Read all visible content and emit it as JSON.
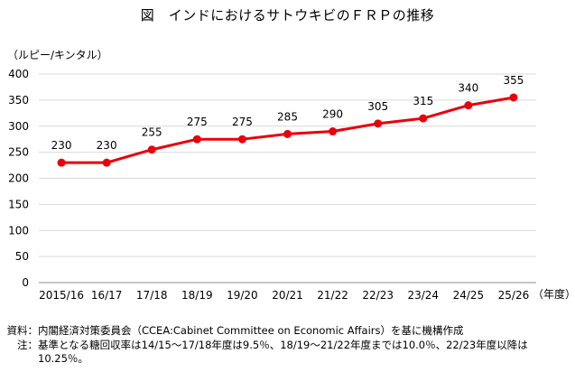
{
  "title": "図　インドにおけるサトウキビのＦＲＰの推移",
  "notes": {
    "source_label": "資料：",
    "source_text": "内閣経済対策委員会（CCEA:Cabinet Committee on Economic Affairs）を基に機構作成",
    "note_label": "注：",
    "note_text": "基準となる糖回収率は14/15～17/18年度は9.5％、18/19～21/22年度までは10.0％、22/23年度以降は10.25％。"
  },
  "chart_data": {
    "type": "line",
    "title": "図　インドにおけるサトウキビのＦＲＰの推移",
    "ylabel": "（ルピー/キンタル）",
    "xlabel": "（年度）",
    "categories": [
      "2015/16",
      "16/17",
      "17/18",
      "18/19",
      "19/20",
      "20/21",
      "21/22",
      "22/23",
      "23/24",
      "24/25",
      "25/26"
    ],
    "series": [
      {
        "values": [
          230,
          230,
          255,
          275,
          275,
          285,
          290,
          305,
          315,
          340,
          355
        ]
      }
    ],
    "ylim": [
      0,
      400
    ],
    "yticks": [
      0,
      50,
      100,
      150,
      200,
      250,
      300,
      350,
      400
    ],
    "grid": true,
    "colors": {
      "line": "#e8000b",
      "grid": "#d9d9d9"
    }
  }
}
